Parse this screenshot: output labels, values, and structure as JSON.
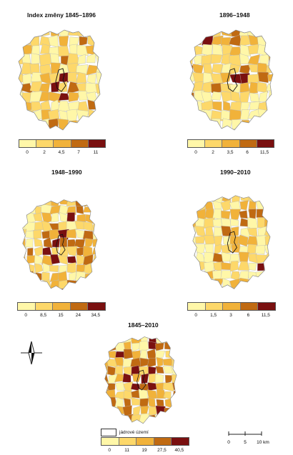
{
  "panels": [
    {
      "id": "p1",
      "title": "Index změny 1845–1896",
      "ticks": [
        "0",
        "2",
        "4,5",
        "7",
        "11"
      ],
      "colors": [
        "#fff7a8",
        "#fdd86a",
        "#f1b23a",
        "#c06a12",
        "#7a1010"
      ]
    },
    {
      "id": "p2",
      "title": "1896–1948",
      "ticks": [
        "0",
        "2",
        "3,5",
        "6",
        "11,5"
      ],
      "colors": [
        "#fff7a8",
        "#fdd86a",
        "#f1b23a",
        "#c06a12",
        "#7a1010"
      ]
    },
    {
      "id": "p3",
      "title": "1948–1990",
      "ticks": [
        "0",
        "8,5",
        "15",
        "24",
        "34,5"
      ],
      "colors": [
        "#fff7a8",
        "#fdd86a",
        "#f1b23a",
        "#c06a12",
        "#7a1010"
      ]
    },
    {
      "id": "p4",
      "title": "1990–2010",
      "ticks": [
        "0",
        "1,5",
        "3",
        "6",
        "11,5"
      ],
      "colors": [
        "#fff7a8",
        "#fdd86a",
        "#f1b23a",
        "#c06a12",
        "#7a1010"
      ]
    },
    {
      "id": "p5",
      "title": "1845–2010",
      "ticks": [
        "0",
        "11",
        "19",
        "27,5",
        "40,5"
      ],
      "colors": [
        "#fff7a8",
        "#fdd86a",
        "#f1b23a",
        "#c06a12",
        "#7a1010"
      ]
    }
  ],
  "core_legend": {
    "label": "jádrové území"
  },
  "scale": {
    "labels": [
      "0",
      "5",
      "10 km"
    ]
  },
  "north_arrow": {
    "icon": "north-arrow-icon"
  }
}
